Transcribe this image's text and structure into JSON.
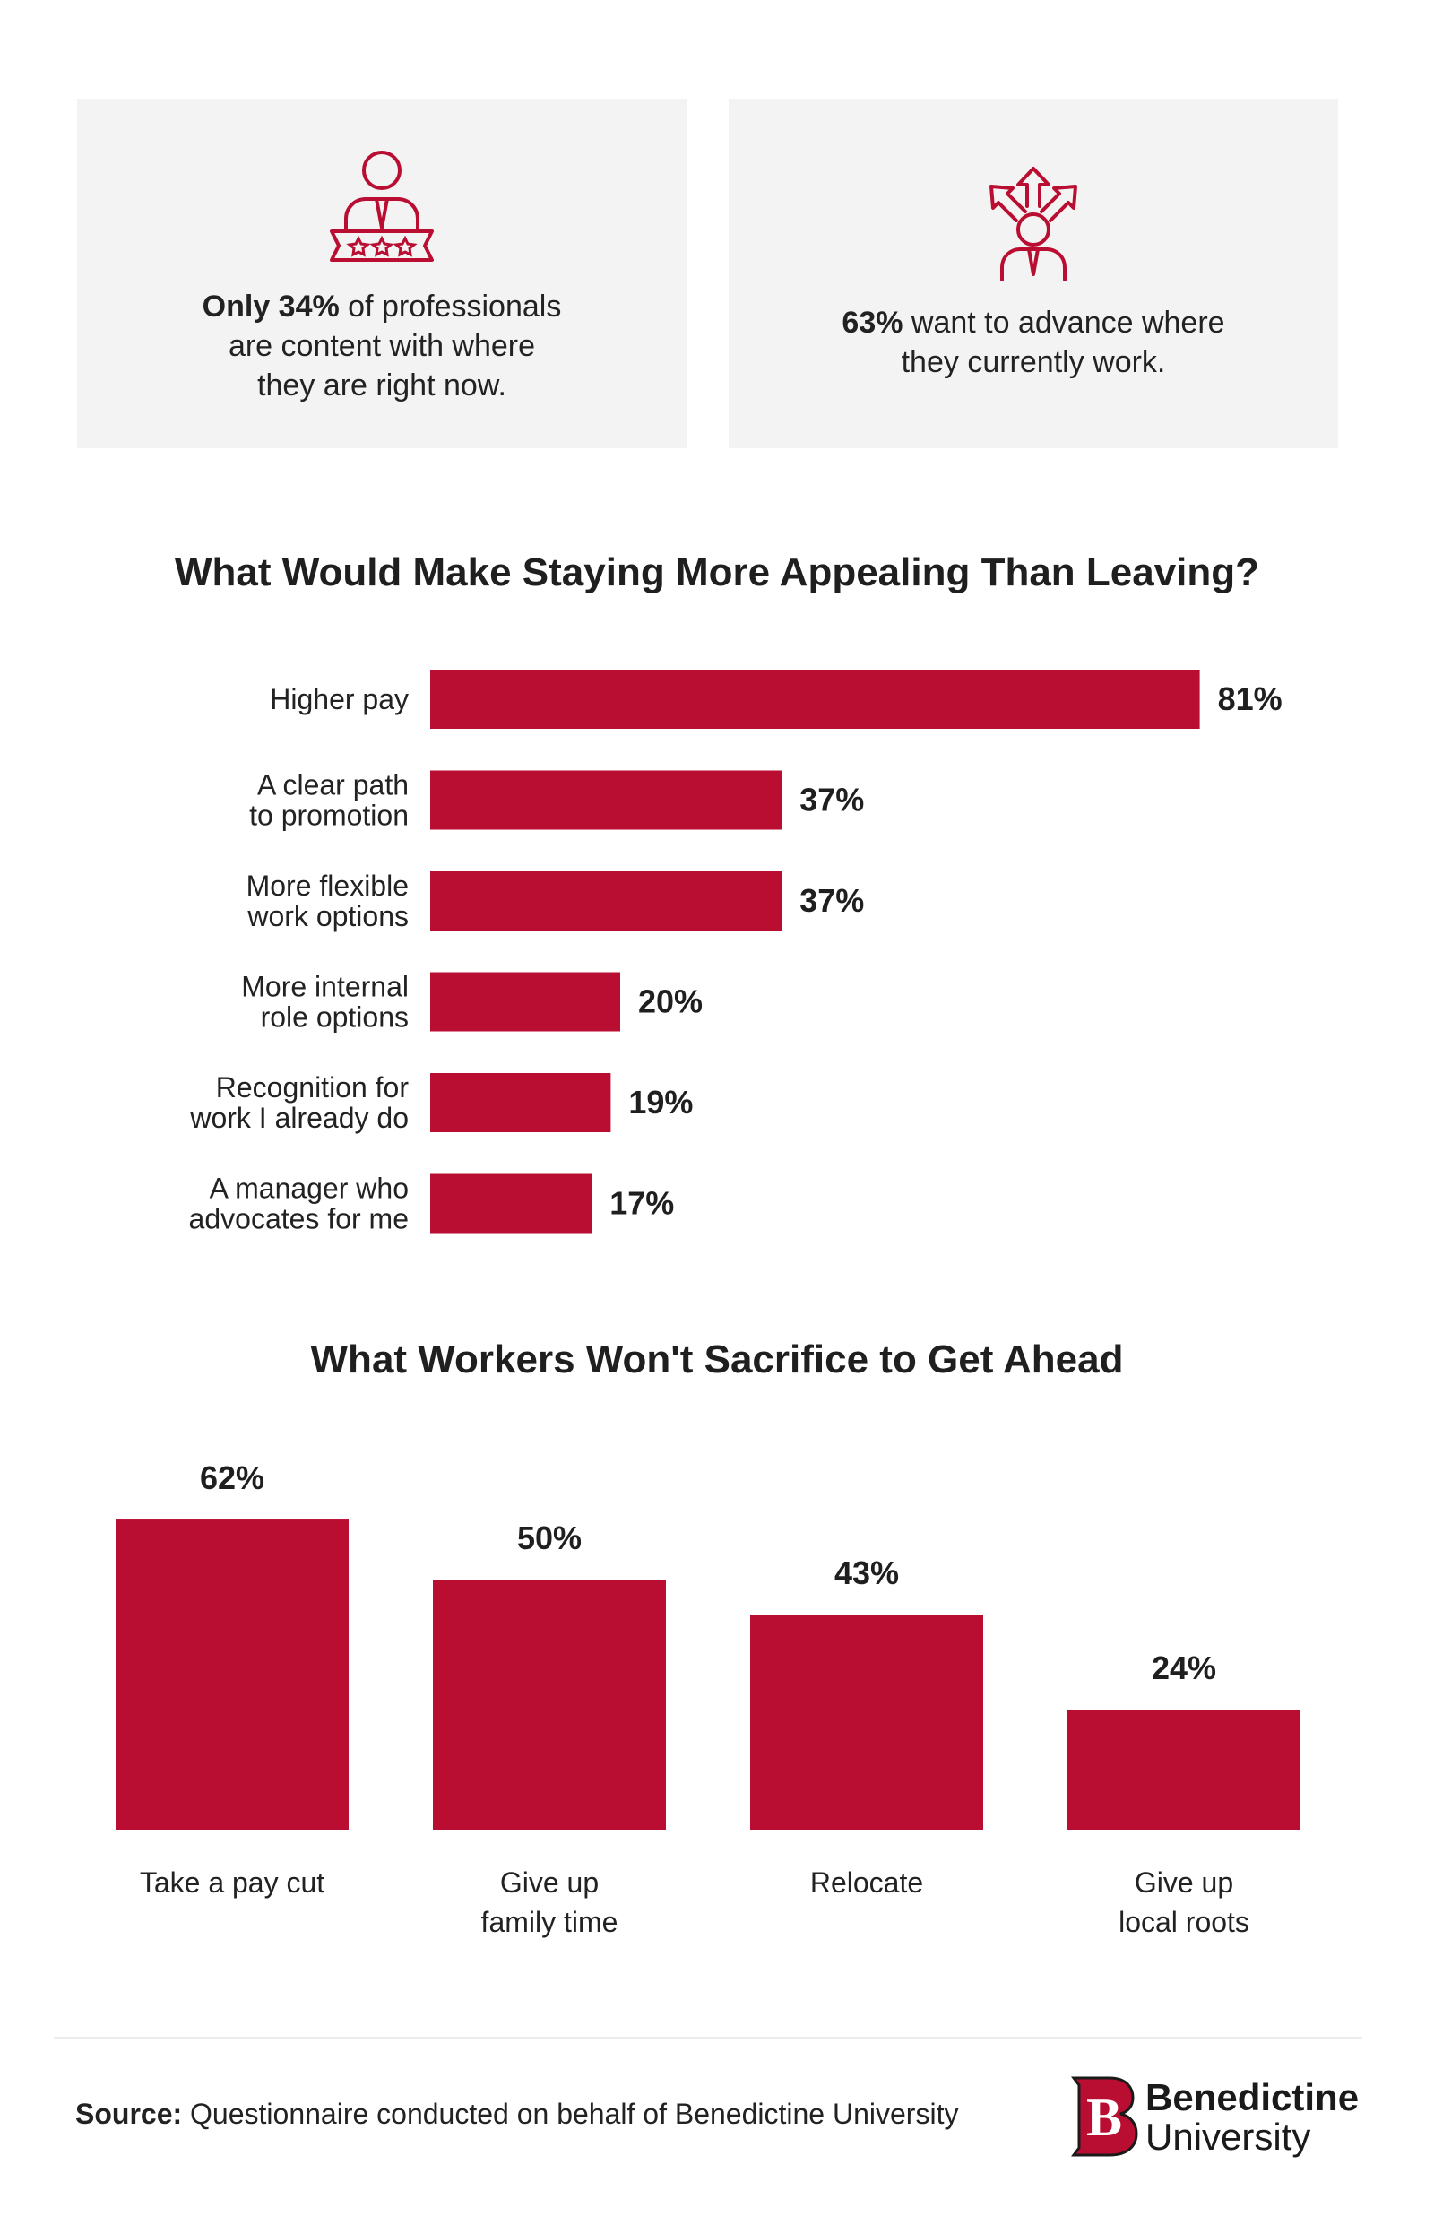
{
  "cards": [
    {
      "icon": "podium-person-stars-icon",
      "bold": "Only 34%",
      "lines": [
        " of professionals",
        "are content with where",
        "they are right now."
      ]
    },
    {
      "icon": "person-arrows-icon",
      "bold": "63%",
      "lines": [
        " want to advance where",
        "they currently work."
      ]
    }
  ],
  "colors": {
    "accent": "#b90e31",
    "card_bg": "#f3f3f3",
    "text": "#1f1f1f"
  },
  "chart_data": [
    {
      "type": "bar",
      "orientation": "horizontal",
      "title": "What Would Make Staying More Appealing Than Leaving?",
      "categories": [
        [
          "Higher pay"
        ],
        [
          "A clear path",
          "to promotion"
        ],
        [
          "More flexible",
          "work options"
        ],
        [
          "More internal",
          "role options"
        ],
        [
          "Recognition for",
          "work I already do"
        ],
        [
          "A manager who",
          "advocates for me"
        ]
      ],
      "values": [
        81,
        37,
        37,
        20,
        19,
        17
      ],
      "value_labels": [
        "81%",
        "37%",
        "37%",
        "20%",
        "19%",
        "17%"
      ],
      "xlim": [
        0,
        100
      ],
      "unit": "%"
    },
    {
      "type": "bar",
      "orientation": "vertical",
      "title": "What Workers Won't Sacrifice to Get Ahead",
      "categories": [
        [
          "Take a pay cut"
        ],
        [
          "Give up",
          "family time"
        ],
        [
          "Relocate"
        ],
        [
          "Give up",
          "local roots"
        ]
      ],
      "values": [
        62,
        50,
        43,
        24
      ],
      "value_labels": [
        "62%",
        "50%",
        "43%",
        "24%"
      ],
      "ylim": [
        0,
        70
      ],
      "unit": "%"
    }
  ],
  "footer": {
    "source_label": "Source:",
    "source_text": " Questionnaire conducted on behalf of Benedictine University",
    "logo_name": "Benedictine",
    "logo_sub": "University",
    "logo_letter": "B"
  }
}
